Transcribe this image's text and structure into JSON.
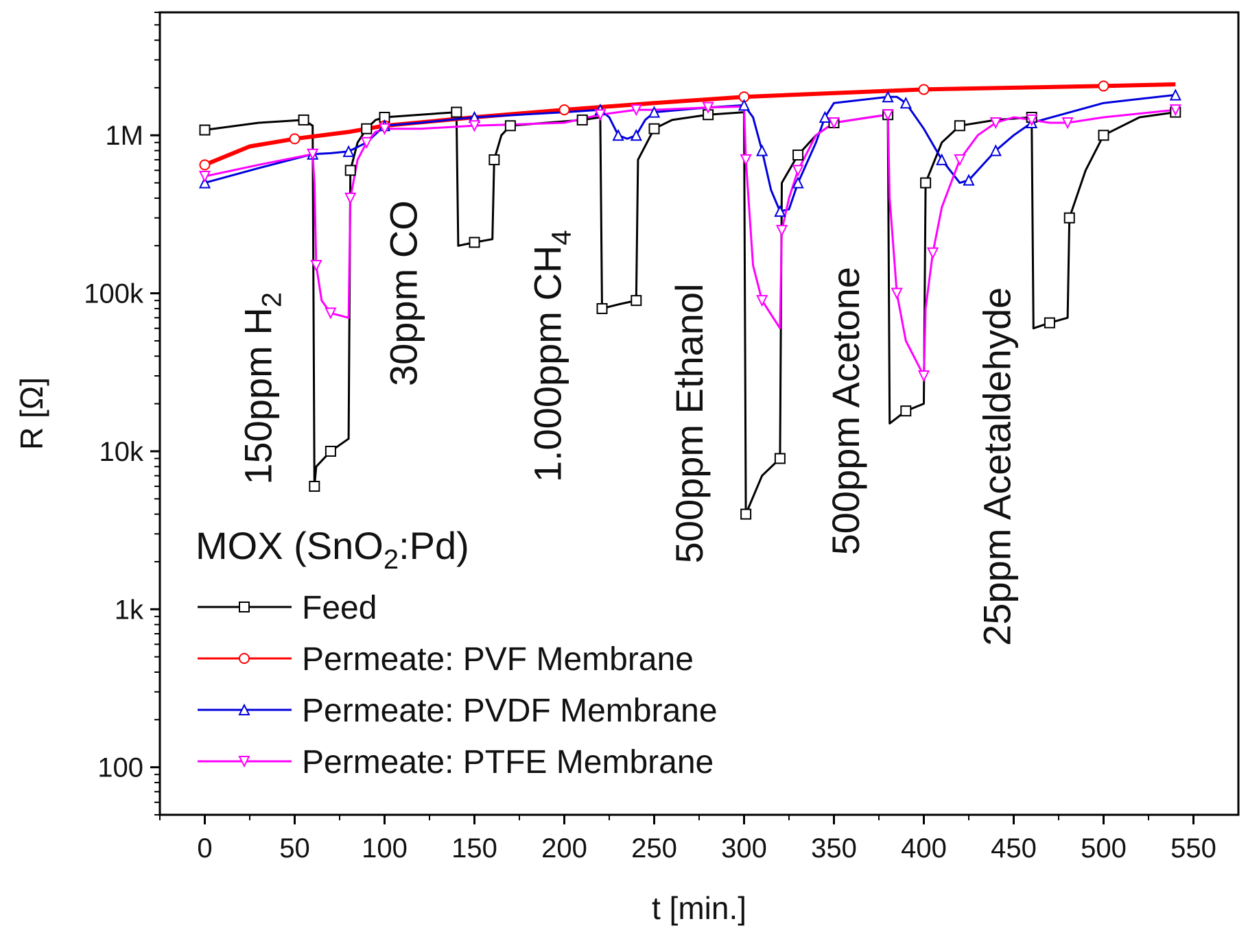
{
  "chart_data": {
    "type": "line",
    "title": "MOX (SnO2:Pd)",
    "title_main": "MOX (SnO",
    "title_sub": "2",
    "title_tail": ":Pd)",
    "xlabel": "t [min.]",
    "ylabel": "R [Ω]",
    "xlim": [
      -25,
      575
    ],
    "ylim": [
      50,
      6000000
    ],
    "yscale": "log",
    "x_ticks": [
      0,
      50,
      100,
      150,
      200,
      250,
      300,
      350,
      400,
      450,
      500,
      550
    ],
    "x_tick_labels": [
      "0",
      "50",
      "100",
      "150",
      "200",
      "250",
      "300",
      "350",
      "400",
      "450",
      "500",
      "550"
    ],
    "y_ticks": [
      100,
      1000,
      10000,
      100000,
      1000000
    ],
    "y_tick_labels": [
      "100",
      "1k",
      "10k",
      "100k",
      "1M"
    ],
    "legend_position": "lower-left",
    "annotations": [
      {
        "text": "150ppm H",
        "sub": "2",
        "x": 37,
        "y_center": 25000
      },
      {
        "text": "30ppm CO",
        "sub": "",
        "x": 118,
        "y_center": 100000
      },
      {
        "text": "1.000ppm CH",
        "sub": "4",
        "x": 198,
        "y_center": 40000
      },
      {
        "text": "500ppm Ethanol",
        "sub": "",
        "x": 277,
        "y_center": 15000
      },
      {
        "text": "500ppm Acetone",
        "sub": "",
        "x": 364,
        "y_center": 18000
      },
      {
        "text": "25ppm Acetaldehyde",
        "sub": "",
        "x": 448,
        "y_center": 8000
      }
    ],
    "series": [
      {
        "name": "Feed",
        "color": "#000000",
        "marker": "square",
        "x": [
          0,
          30,
          55,
          60,
          61,
          62,
          70,
          80,
          81,
          85,
          90,
          95,
          100,
          120,
          140,
          141,
          150,
          160,
          161,
          165,
          170,
          190,
          210,
          220,
          221,
          230,
          240,
          241,
          250,
          260,
          280,
          300,
          301,
          310,
          320,
          321,
          330,
          340,
          350,
          370,
          380,
          381,
          390,
          400,
          401,
          410,
          420,
          440,
          460,
          461,
          470,
          480,
          481,
          490,
          500,
          520,
          540
        ],
        "y": [
          1080000,
          1200000,
          1250000,
          1150000,
          6000,
          8000,
          10000,
          12000,
          600000,
          900000,
          1100000,
          1250000,
          1300000,
          1350000,
          1400000,
          200000,
          210000,
          220000,
          700000,
          1000000,
          1150000,
          1200000,
          1250000,
          1300000,
          80000,
          85000,
          90000,
          700000,
          1100000,
          1250000,
          1350000,
          1400000,
          4000,
          7000,
          9000,
          500000,
          750000,
          1000000,
          1200000,
          1300000,
          1350000,
          15000,
          18000,
          20000,
          500000,
          900000,
          1150000,
          1250000,
          1300000,
          60000,
          65000,
          70000,
          300000,
          600000,
          1000000,
          1300000,
          1400000
        ]
      },
      {
        "name": "Permeate: PVF Membrane",
        "color": "#ff0000",
        "marker": "circle",
        "x": [
          0,
          25,
          50,
          80,
          100,
          150,
          200,
          250,
          300,
          350,
          400,
          450,
          500,
          540
        ],
        "y": [
          650000,
          850000,
          950000,
          1050000,
          1150000,
          1300000,
          1450000,
          1600000,
          1750000,
          1850000,
          1950000,
          2000000,
          2050000,
          2100000
        ]
      },
      {
        "name": "Permeate: PVDF Membrane",
        "color": "#0000dd",
        "marker": "triangle-up",
        "x": [
          0,
          30,
          60,
          70,
          80,
          90,
          100,
          120,
          150,
          200,
          220,
          225,
          230,
          235,
          240,
          245,
          250,
          280,
          300,
          305,
          310,
          315,
          320,
          325,
          330,
          340,
          345,
          350,
          380,
          385,
          390,
          400,
          410,
          420,
          425,
          430,
          440,
          450,
          460,
          500,
          540
        ],
        "y": [
          500000,
          620000,
          760000,
          770000,
          790000,
          900000,
          1150000,
          1200000,
          1300000,
          1400000,
          1450000,
          1300000,
          1000000,
          950000,
          1000000,
          1250000,
          1400000,
          1500000,
          1550000,
          1300000,
          800000,
          450000,
          330000,
          340000,
          500000,
          900000,
          1300000,
          1600000,
          1750000,
          1750000,
          1600000,
          1100000,
          700000,
          500000,
          520000,
          600000,
          800000,
          1000000,
          1200000,
          1600000,
          1800000
        ]
      },
      {
        "name": "Permeate: PTFE Membrane",
        "color": "#ff00ff",
        "marker": "triangle-down",
        "x": [
          0,
          30,
          60,
          61,
          62,
          65,
          70,
          80,
          81,
          85,
          90,
          95,
          100,
          120,
          150,
          200,
          220,
          230,
          240,
          250,
          280,
          300,
          301,
          305,
          310,
          320,
          321,
          325,
          330,
          340,
          350,
          370,
          380,
          381,
          385,
          390,
          400,
          401,
          405,
          410,
          420,
          430,
          440,
          450,
          460,
          470,
          480,
          500,
          540
        ],
        "y": [
          550000,
          650000,
          760000,
          500000,
          150000,
          90000,
          75000,
          70000,
          400000,
          700000,
          900000,
          1050000,
          1100000,
          1100000,
          1150000,
          1200000,
          1350000,
          1400000,
          1450000,
          1450000,
          1500000,
          1520000,
          700000,
          150000,
          90000,
          60000,
          250000,
          400000,
          600000,
          1000000,
          1200000,
          1300000,
          1350000,
          400000,
          100000,
          50000,
          30000,
          80000,
          180000,
          350000,
          700000,
          1000000,
          1200000,
          1300000,
          1250000,
          1200000,
          1200000,
          1300000,
          1450000
        ]
      }
    ]
  }
}
